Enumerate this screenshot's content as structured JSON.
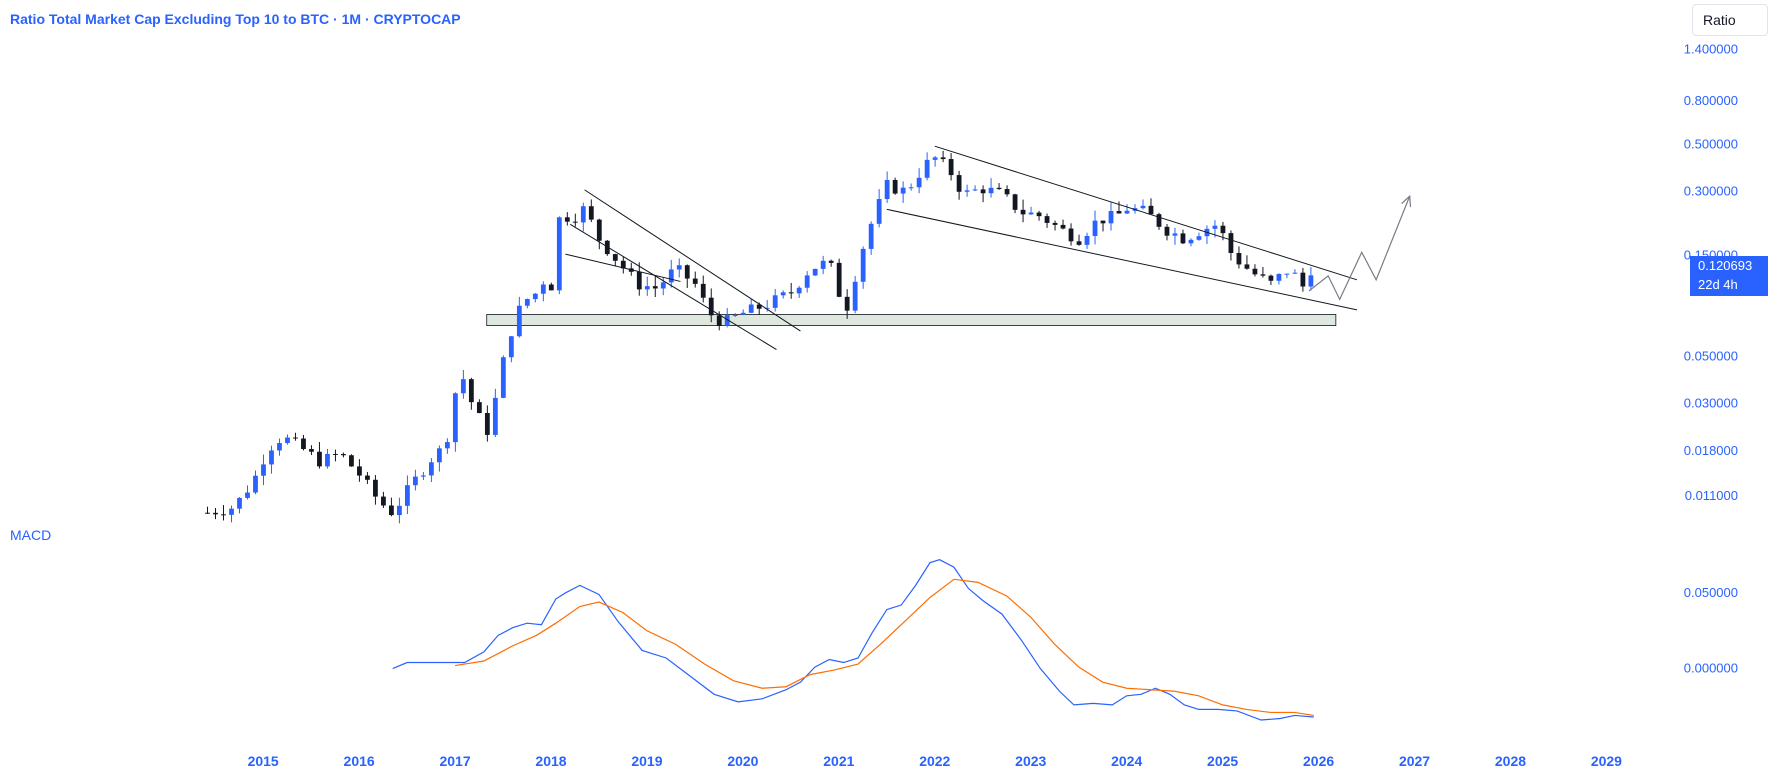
{
  "header": {
    "title": "Ratio Total Market Cap Excluding Top 10 to BTC · 1M · CRYPTOCAP",
    "scale_button": "Ratio",
    "macd_label": "MACD"
  },
  "last_price": {
    "value": "0.120693",
    "countdown": "22d 4h"
  },
  "colors": {
    "up": "#2962ff",
    "down": "#131722",
    "macd": "#2962ff",
    "signal": "#ff6d00",
    "axis_text": "#2962ff",
    "zone_fill": "#dfe8df",
    "drawing": "#131722",
    "projection": "#787b86"
  },
  "chart_data": [
    {
      "type": "candlestick",
      "title": "Ratio Total Market Cap Excluding Top 10 to BTC · 1M · CRYPTOCAP",
      "y_scale": "log",
      "ylim": [
        0.0085,
        1.55
      ],
      "xlim": [
        2014.3,
        2029.35
      ],
      "x_ticks": [
        2015,
        2016,
        2017,
        2018,
        2019,
        2020,
        2021,
        2022,
        2023,
        2024,
        2025,
        2026,
        2027,
        2028,
        2029
      ],
      "y_ticks": [
        "1.400000",
        "0.800000",
        "0.500000",
        "0.300000",
        "0.150000",
        "0.050000",
        "0.030000",
        "0.018000",
        "0.011000"
      ],
      "anchors": [
        [
          2014.42,
          0.0092
        ],
        [
          2014.7,
          0.0098
        ],
        [
          2014.9,
          0.013
        ],
        [
          2015.05,
          0.0185
        ],
        [
          2015.2,
          0.021
        ],
        [
          2015.4,
          0.0185
        ],
        [
          2015.6,
          0.016
        ],
        [
          2015.8,
          0.0175
        ],
        [
          2016.0,
          0.014
        ],
        [
          2016.2,
          0.0105
        ],
        [
          2016.35,
          0.0092
        ],
        [
          2016.55,
          0.0125
        ],
        [
          2016.75,
          0.0165
        ],
        [
          2016.9,
          0.019
        ],
        [
          2017.05,
          0.044
        ],
        [
          2017.2,
          0.028
        ],
        [
          2017.35,
          0.022
        ],
        [
          2017.55,
          0.06
        ],
        [
          2017.7,
          0.09
        ],
        [
          2017.85,
          0.1
        ],
        [
          2017.95,
          0.12
        ],
        [
          2018.0,
          0.105
        ],
        [
          2018.1,
          0.25
        ],
        [
          2018.2,
          0.22
        ],
        [
          2018.35,
          0.25
        ],
        [
          2018.5,
          0.18
        ],
        [
          2018.7,
          0.14
        ],
        [
          2018.9,
          0.11
        ],
        [
          2019.1,
          0.105
        ],
        [
          2019.3,
          0.13
        ],
        [
          2019.5,
          0.11
        ],
        [
          2019.65,
          0.08
        ],
        [
          2019.8,
          0.072
        ],
        [
          2020.0,
          0.08
        ],
        [
          2020.25,
          0.088
        ],
        [
          2020.5,
          0.1
        ],
        [
          2020.7,
          0.13
        ],
        [
          2020.9,
          0.14
        ],
        [
          2021.0,
          0.1
        ],
        [
          2021.1,
          0.085
        ],
        [
          2021.2,
          0.14
        ],
        [
          2021.35,
          0.22
        ],
        [
          2021.5,
          0.32
        ],
        [
          2021.7,
          0.3
        ],
        [
          2021.9,
          0.4
        ],
        [
          2022.0,
          0.43
        ],
        [
          2022.15,
          0.38
        ],
        [
          2022.3,
          0.29
        ],
        [
          2022.5,
          0.31
        ],
        [
          2022.7,
          0.29
        ],
        [
          2022.9,
          0.24
        ],
        [
          2023.1,
          0.23
        ],
        [
          2023.3,
          0.2
        ],
        [
          2023.5,
          0.18
        ],
        [
          2023.7,
          0.22
        ],
        [
          2023.9,
          0.23
        ],
        [
          2024.0,
          0.25
        ],
        [
          2024.2,
          0.24
        ],
        [
          2024.4,
          0.2
        ],
        [
          2024.6,
          0.18
        ],
        [
          2024.8,
          0.2
        ],
        [
          2024.95,
          0.21
        ],
        [
          2025.1,
          0.15
        ],
        [
          2025.3,
          0.125
        ],
        [
          2025.5,
          0.11
        ],
        [
          2025.7,
          0.13
        ],
        [
          2025.85,
          0.105
        ],
        [
          2025.95,
          0.12
        ]
      ],
      "zone": {
        "y_range": [
          0.07,
          0.079
        ],
        "x_range": [
          2017.33,
          2026.18
        ]
      },
      "trendlines": [
        {
          "from": [
            2018.15,
            0.152
          ],
          "to": [
            2019.35,
            0.113
          ]
        },
        {
          "from": [
            2018.35,
            0.305
          ],
          "to": [
            2020.6,
            0.066
          ]
        },
        {
          "from": [
            2018.2,
            0.21
          ],
          "to": [
            2020.35,
            0.054
          ]
        },
        {
          "from": [
            2021.5,
            0.247
          ],
          "to": [
            2026.4,
            0.083
          ]
        },
        {
          "from": [
            2022.0,
            0.49
          ],
          "to": [
            2026.4,
            0.115
          ]
        }
      ],
      "projection": [
        [
          2025.9,
          0.102
        ],
        [
          2026.1,
          0.12
        ],
        [
          2026.22,
          0.093
        ],
        [
          2026.45,
          0.155
        ],
        [
          2026.6,
          0.115
        ],
        [
          2026.95,
          0.285
        ]
      ]
    },
    {
      "type": "line",
      "title": "MACD",
      "ylim": [
        -0.034,
        0.085
      ],
      "y_ticks": [
        "0.050000",
        "0.000000"
      ],
      "series": [
        {
          "color": "#2962ff",
          "points": [
            [
              2016.35,
              0.0
            ],
            [
              2016.5,
              0.004
            ],
            [
              2016.9,
              0.004
            ],
            [
              2017.1,
              0.004
            ],
            [
              2017.3,
              0.011
            ],
            [
              2017.45,
              0.022
            ],
            [
              2017.6,
              0.027
            ],
            [
              2017.75,
              0.03
            ],
            [
              2017.9,
              0.029
            ],
            [
              2018.05,
              0.046
            ],
            [
              2018.15,
              0.05
            ],
            [
              2018.3,
              0.055
            ],
            [
              2018.5,
              0.049
            ],
            [
              2018.7,
              0.031
            ],
            [
              2018.95,
              0.012
            ],
            [
              2019.2,
              0.007
            ],
            [
              2019.45,
              -0.005
            ],
            [
              2019.7,
              -0.017
            ],
            [
              2019.95,
              -0.022
            ],
            [
              2020.2,
              -0.02
            ],
            [
              2020.45,
              -0.014
            ],
            [
              2020.6,
              -0.009
            ],
            [
              2020.75,
              0.001
            ],
            [
              2020.9,
              0.006
            ],
            [
              2021.05,
              0.004
            ],
            [
              2021.2,
              0.007
            ],
            [
              2021.35,
              0.024
            ],
            [
              2021.5,
              0.039
            ],
            [
              2021.65,
              0.042
            ],
            [
              2021.8,
              0.055
            ],
            [
              2021.95,
              0.07
            ],
            [
              2022.05,
              0.072
            ],
            [
              2022.2,
              0.067
            ],
            [
              2022.35,
              0.053
            ],
            [
              2022.5,
              0.045
            ],
            [
              2022.7,
              0.036
            ],
            [
              2022.9,
              0.019
            ],
            [
              2023.1,
              0.0
            ],
            [
              2023.3,
              -0.015
            ],
            [
              2023.45,
              -0.024
            ],
            [
              2023.65,
              -0.023
            ],
            [
              2023.85,
              -0.024
            ],
            [
              2024.0,
              -0.018
            ],
            [
              2024.15,
              -0.017
            ],
            [
              2024.3,
              -0.013
            ],
            [
              2024.45,
              -0.017
            ],
            [
              2024.6,
              -0.024
            ],
            [
              2024.75,
              -0.027
            ],
            [
              2024.95,
              -0.027
            ],
            [
              2025.15,
              -0.028
            ],
            [
              2025.4,
              -0.034
            ],
            [
              2025.6,
              -0.033
            ],
            [
              2025.75,
              -0.031
            ],
            [
              2025.95,
              -0.032
            ]
          ]
        },
        {
          "color": "#ff6d00",
          "points": [
            [
              2017.0,
              0.002
            ],
            [
              2017.3,
              0.005
            ],
            [
              2017.6,
              0.015
            ],
            [
              2017.85,
              0.022
            ],
            [
              2018.05,
              0.03
            ],
            [
              2018.3,
              0.041
            ],
            [
              2018.5,
              0.044
            ],
            [
              2018.75,
              0.037
            ],
            [
              2019.0,
              0.025
            ],
            [
              2019.3,
              0.016
            ],
            [
              2019.6,
              0.003
            ],
            [
              2019.9,
              -0.008
            ],
            [
              2020.2,
              -0.013
            ],
            [
              2020.45,
              -0.012
            ],
            [
              2020.7,
              -0.004
            ],
            [
              2020.95,
              -0.001
            ],
            [
              2021.2,
              0.003
            ],
            [
              2021.45,
              0.017
            ],
            [
              2021.7,
              0.032
            ],
            [
              2021.95,
              0.047
            ],
            [
              2022.2,
              0.059
            ],
            [
              2022.45,
              0.057
            ],
            [
              2022.75,
              0.048
            ],
            [
              2023.0,
              0.034
            ],
            [
              2023.25,
              0.016
            ],
            [
              2023.5,
              0.001
            ],
            [
              2023.75,
              -0.009
            ],
            [
              2024.0,
              -0.013
            ],
            [
              2024.25,
              -0.014
            ],
            [
              2024.5,
              -0.015
            ],
            [
              2024.75,
              -0.018
            ],
            [
              2025.0,
              -0.024
            ],
            [
              2025.25,
              -0.027
            ],
            [
              2025.5,
              -0.029
            ],
            [
              2025.75,
              -0.029
            ],
            [
              2025.95,
              -0.031
            ]
          ]
        }
      ]
    }
  ]
}
